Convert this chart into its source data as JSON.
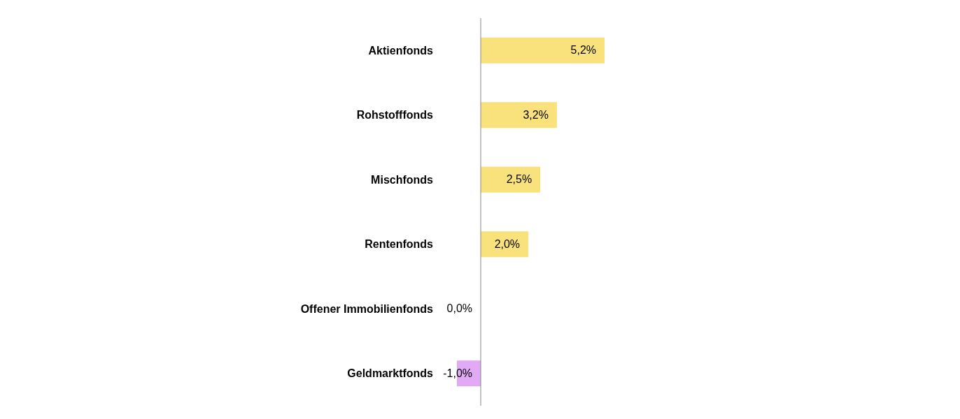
{
  "chart_data": {
    "type": "bar",
    "orientation": "horizontal",
    "categories": [
      "Aktienfonds",
      "Rohstofffonds",
      "Mischfonds",
      "Rentenfonds",
      "Offener Immobilienfonds",
      "Geldmarktfonds"
    ],
    "values": [
      5.2,
      3.2,
      2.5,
      2.0,
      0.0,
      -1.0
    ],
    "colors": [
      "#f9e27c",
      "#f9e27c",
      "#f9e27c",
      "#f9e27c",
      "#f9e27c",
      "#e2aaf5"
    ],
    "value_labels": [
      "5,2%",
      "3,2%",
      "2,5%",
      "2,0%",
      "0,0%",
      "-1,0%"
    ],
    "grid": false,
    "legend": false
  }
}
